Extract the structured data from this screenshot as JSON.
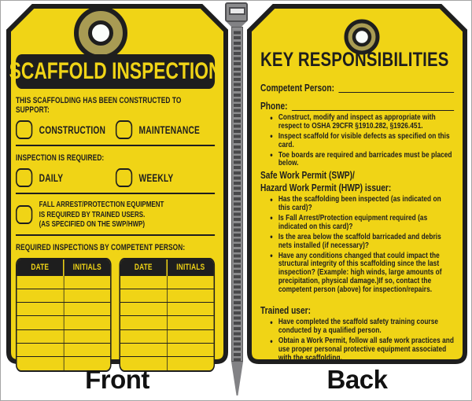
{
  "page": {
    "front_caption": "Front",
    "back_caption": "Back"
  },
  "colors": {
    "tag_yellow": "#F0D416",
    "tag_black": "#1E1E1E",
    "grommet_olive": "#A89B53",
    "grommet_hole_white": "#FAFDFB",
    "cable_tie_gray": "#8C8C8E",
    "caption_black": "#111111"
  },
  "graphics": {
    "grommet_icon": "metal eyelet ring at top of each tag",
    "cable_tie_icon": "gray zip tie between tags"
  },
  "front": {
    "title": "SCAFFOLD INSPECTION",
    "support_heading": "THIS SCAFFOLDING HAS BEEN CONSTRUCTED TO SUPPORT:",
    "support_options": [
      "CONSTRUCTION",
      "MAINTENANCE"
    ],
    "inspection_heading": "INSPECTION IS REQUIRED:",
    "inspection_options": [
      "DAILY",
      "WEEKLY"
    ],
    "fall_arrest_lines": [
      "FALL ARREST/PROTECTION EQUIPMENT",
      "IS REQUIRED BY TRAINED USERS.",
      "(AS SPECIFIED ON THE SWP/HWP)"
    ],
    "table_heading": "REQUIRED INSPECTIONS BY COMPETENT PERSON:",
    "table_columns": [
      "DATE",
      "INITIALS"
    ],
    "table_rows": 7,
    "table_count": 2
  },
  "back": {
    "title": "KEY RESPONSIBILITIES",
    "blocks": [
      {
        "type": "field",
        "label": "Competent Person:"
      },
      {
        "type": "field",
        "label": "Phone:"
      },
      {
        "type": "bullets",
        "items": [
          "Construct, modify and inspect as appropriate with respect to OSHA  29CFR §1910.282, §1926.451.",
          "Inspect scaffold for visible defects as specified on this card.",
          "Toe boards are required and barricades must be placed below."
        ]
      },
      {
        "type": "subhead",
        "text": "Safe Work Permit (SWP)/"
      },
      {
        "type": "subhead",
        "text": "Hazard Work Permit (HWP) issuer:"
      },
      {
        "type": "bullets",
        "items": [
          "Has the scaffolding been inspected (as indicated on this card)?",
          "Is Fall Arrest/Protection equipment required (as indicated on this card)?",
          "Is the area below the scaffold barricaded and debris nets installed (if necessary)?",
          "Have any conditions changed that could impact the structural integrity of this scaffolding since the last inspection? (Example: high winds, large amounts of precipitation, physical damage.)If so, contact the competent person (above) for inspection/repairs."
        ]
      },
      {
        "type": "subhead",
        "text": "Trained user:",
        "gap": true
      },
      {
        "type": "bullets",
        "items": [
          "Have completed the scaffold safety training course conducted by a qualified person.",
          "Obtain a Work Permit, follow all safe work practices and use proper personal protective equipment associated with the scaffolding."
        ]
      }
    ]
  }
}
